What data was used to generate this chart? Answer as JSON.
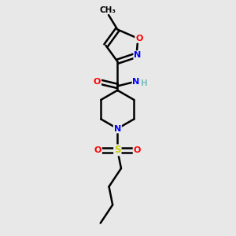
{
  "bg_color": "#e8e8e8",
  "atom_colors": {
    "C": "#000000",
    "N": "#0000ff",
    "O": "#ff0000",
    "S": "#cccc00",
    "H": "#7fbfbf"
  },
  "bond_color": "#000000",
  "bond_width": 1.8,
  "fig_width": 3.0,
  "fig_height": 3.0
}
